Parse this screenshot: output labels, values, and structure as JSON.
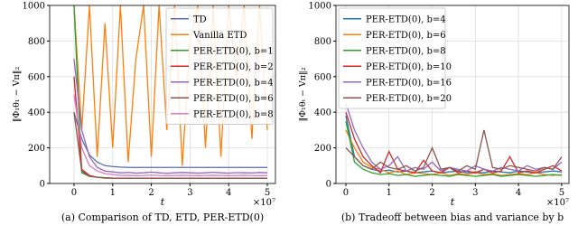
{
  "chart_data": [
    {
      "type": "line",
      "y_label": "‖Φ₁θ₁ − Vπ‖₂",
      "x_label": "t",
      "x_offset_label": "×10⁷",
      "caption": "(a) Comparison of TD, ETD, PER-ETD(0)",
      "xlim": [
        -0.63,
        5.21
      ],
      "ylim": [
        0,
        1000
      ],
      "xticks": [
        0,
        1,
        2,
        3,
        4,
        5
      ],
      "yticks": [
        0,
        200,
        400,
        600,
        800,
        1000
      ],
      "grid": true,
      "legend": "upper right",
      "x": [
        0,
        0.2,
        0.4,
        0.6,
        0.8,
        1.0,
        1.2,
        1.4,
        1.6,
        1.8,
        2.0,
        2.2,
        2.4,
        2.6,
        2.8,
        3.0,
        3.2,
        3.4,
        3.6,
        3.8,
        4.0,
        4.2,
        4.4,
        4.6,
        4.8,
        5.0
      ],
      "series": [
        {
          "name": "TD",
          "color": "#5a6fa8",
          "values": [
            400,
            250,
            160,
            120,
            100,
            95,
            92,
            90,
            90,
            90,
            90,
            90,
            90,
            90,
            90,
            90,
            90,
            90,
            90,
            90,
            90,
            90,
            90,
            90,
            90,
            90
          ]
        },
        {
          "name": "Vanilla ETD",
          "color": "#ff7f0e",
          "values": [
            1000,
            300,
            1000,
            150,
            900,
            200,
            1000,
            120,
            700,
            1000,
            150,
            1000,
            300,
            1000,
            100,
            800,
            1000,
            200,
            1000,
            150,
            1000,
            600,
            1000,
            250,
            1000,
            300
          ]
        },
        {
          "name": "PER-ETD(0), b=1",
          "color": "#2ca02c",
          "values": [
            1000,
            60,
            40,
            35,
            30,
            30,
            30,
            30,
            30,
            30,
            30,
            30,
            30,
            30,
            30,
            30,
            30,
            30,
            30,
            30,
            30,
            30,
            30,
            30,
            30,
            30
          ]
        },
        {
          "name": "PER-ETD(0), b=2",
          "color": "#d62728",
          "values": [
            600,
            80,
            45,
            35,
            32,
            30,
            30,
            30,
            30,
            30,
            30,
            30,
            30,
            30,
            30,
            30,
            30,
            30,
            30,
            30,
            30,
            30,
            30,
            30,
            30,
            30
          ]
        },
        {
          "name": "PER-ETD(0), b=4",
          "color": "#9467bd",
          "values": [
            700,
            300,
            150,
            90,
            70,
            65,
            60,
            62,
            58,
            60,
            64,
            60,
            57,
            60,
            62,
            60,
            58,
            60,
            63,
            60,
            58,
            61,
            60,
            59,
            62,
            60
          ]
        },
        {
          "name": "PER-ETD(0), b=6",
          "color": "#8c564b",
          "values": [
            400,
            70,
            40,
            35,
            32,
            30,
            30,
            30,
            30,
            30,
            30,
            30,
            30,
            30,
            30,
            30,
            30,
            30,
            30,
            30,
            30,
            30,
            30,
            30,
            30,
            30
          ]
        },
        {
          "name": "PER-ETD(0), b=8",
          "color": "#e377c2",
          "values": [
            500,
            200,
            100,
            70,
            55,
            50,
            45,
            46,
            44,
            45,
            47,
            45,
            44,
            45,
            46,
            45,
            44,
            45,
            46,
            45,
            44,
            45,
            46,
            45,
            44,
            45
          ]
        }
      ]
    },
    {
      "type": "line",
      "y_label": "‖Φ₁θₜ − Vπ‖₂",
      "x_label": "t",
      "x_offset_label": "×10⁷",
      "caption": "(b) Tradeoff between bias and variance by b",
      "xlim": [
        -0.23,
        5.17
      ],
      "ylim": [
        0,
        1000
      ],
      "xticks": [
        0,
        1,
        2,
        3,
        4,
        5
      ],
      "yticks": [
        0,
        200,
        400,
        600,
        800,
        1000
      ],
      "grid": true,
      "legend": "upper left",
      "x": [
        0,
        0.2,
        0.4,
        0.6,
        0.8,
        1.0,
        1.2,
        1.4,
        1.6,
        1.8,
        2.0,
        2.2,
        2.4,
        2.6,
        2.8,
        3.0,
        3.2,
        3.4,
        3.6,
        3.8,
        4.0,
        4.2,
        4.4,
        4.6,
        4.8,
        5.0
      ],
      "series": [
        {
          "name": "PER-ETD(0), b=4",
          "color": "#1f77b4",
          "values": [
            380,
            150,
            100,
            80,
            70,
            75,
            65,
            70,
            60,
            65,
            70,
            60,
            65,
            70,
            60,
            65,
            60,
            70,
            65,
            60,
            70,
            65,
            60,
            65,
            70,
            65
          ]
        },
        {
          "name": "PER-ETD(0), b=6",
          "color": "#ff7f0e",
          "values": [
            300,
            200,
            120,
            90,
            80,
            60,
            70,
            50,
            60,
            55,
            50,
            60,
            45,
            55,
            50,
            60,
            50,
            55,
            45,
            50,
            55,
            50,
            60,
            50,
            45,
            50
          ]
        },
        {
          "name": "PER-ETD(0), b=8",
          "color": "#2ca02c",
          "values": [
            350,
            120,
            80,
            60,
            50,
            55,
            45,
            50,
            40,
            45,
            50,
            45,
            40,
            50,
            45,
            40,
            45,
            50,
            40,
            45,
            50,
            45,
            40,
            45,
            50,
            45
          ]
        },
        {
          "name": "PER-ETD(0), b=10",
          "color": "#d62728",
          "values": [
            400,
            250,
            150,
            100,
            60,
            180,
            80,
            70,
            60,
            130,
            70,
            60,
            90,
            60,
            70,
            60,
            80,
            60,
            70,
            150,
            60,
            70,
            60,
            80,
            100,
            70
          ]
        },
        {
          "name": "PER-ETD(0), b=16",
          "color": "#9467bd",
          "values": [
            450,
            300,
            200,
            120,
            80,
            100,
            150,
            70,
            90,
            80,
            120,
            70,
            90,
            80,
            70,
            100,
            80,
            70,
            90,
            80,
            70,
            100,
            80,
            90,
            80,
            120
          ]
        },
        {
          "name": "PER-ETD(0), b=20",
          "color": "#8c564b",
          "values": [
            200,
            150,
            100,
            80,
            120,
            90,
            80,
            100,
            70,
            90,
            200,
            80,
            90,
            70,
            100,
            80,
            300,
            90,
            80,
            100,
            90,
            80,
            70,
            90,
            80,
            150
          ]
        }
      ]
    }
  ]
}
